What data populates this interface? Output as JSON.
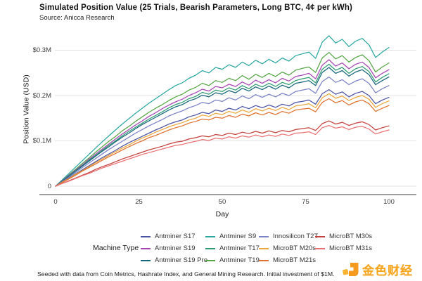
{
  "header": {
    "title": "Simulated Position Value (25 Trials, Bearish Parameters, Long BTC, 4¢ per kWh)",
    "subtitle": "Source: Anicca Research"
  },
  "footer": {
    "note": "Seeded with data from Coin Metrics, Hashrate Index, and General Mining Research. Initial investment of $1M."
  },
  "branding": {
    "name": "金色财经",
    "color": "#F7A41D"
  },
  "legend": {
    "title": "Machine Type",
    "columns": [
      [
        "Antminer S17",
        "Antminer S19",
        "Antminer S19 Pro"
      ],
      [
        "Antminer S9",
        "Antminer T17",
        "Antminer T19"
      ],
      [
        "Innosilicon T2T",
        "MicroBT M20s",
        "MicroBT M21s"
      ],
      [
        "MicroBT M30s",
        "MicroBT M31s"
      ]
    ]
  },
  "chart_data": {
    "type": "line",
    "title": "Simulated Position Value (25 Trials, Bearish Parameters, Long BTC, 4¢ per kWh)",
    "xlabel": "Day",
    "ylabel": "Position Value (USD)",
    "xlim": [
      0,
      100
    ],
    "ylim": [
      0,
      0.34
    ],
    "grid": true,
    "legend_position": "bottom",
    "x_ticks": [
      {
        "v": 0,
        "label": "0"
      },
      {
        "v": 25,
        "label": "25"
      },
      {
        "v": 50,
        "label": "50"
      },
      {
        "v": 75,
        "label": "75"
      },
      {
        "v": 100,
        "label": "100"
      }
    ],
    "y_ticks": [
      {
        "v": 0,
        "label": "0"
      },
      {
        "v": 0.1,
        "label": "$0.1M"
      },
      {
        "v": 0.2,
        "label": "$0.2M"
      },
      {
        "v": 0.3,
        "label": "$0.3M"
      }
    ],
    "units": "millions USD",
    "x": [
      0,
      2,
      4,
      6,
      8,
      10,
      12,
      14,
      16,
      18,
      20,
      22,
      24,
      26,
      28,
      30,
      32,
      34,
      36,
      38,
      40,
      42,
      44,
      46,
      48,
      50,
      52,
      54,
      56,
      58,
      60,
      62,
      64,
      66,
      68,
      70,
      72,
      74,
      76,
      78,
      80,
      82,
      84,
      86,
      88,
      90,
      92,
      94,
      96,
      98,
      100
    ],
    "series": [
      {
        "name": "Antminer S9",
        "color": "#2BA7A0",
        "values": [
          0,
          0.014,
          0.028,
          0.042,
          0.056,
          0.07,
          0.084,
          0.098,
          0.111,
          0.124,
          0.137,
          0.149,
          0.161,
          0.172,
          0.183,
          0.193,
          0.203,
          0.213,
          0.222,
          0.228,
          0.238,
          0.245,
          0.255,
          0.25,
          0.262,
          0.258,
          0.268,
          0.262,
          0.274,
          0.266,
          0.278,
          0.27,
          0.28,
          0.272,
          0.283,
          0.276,
          0.288,
          0.292,
          0.296,
          0.282,
          0.318,
          0.332,
          0.316,
          0.324,
          0.308,
          0.32,
          0.326,
          0.312,
          0.284,
          0.296,
          0.306
        ]
      },
      {
        "name": "Antminer T19",
        "color": "#56A546",
        "values": [
          0,
          0.012,
          0.025,
          0.037,
          0.05,
          0.062,
          0.075,
          0.087,
          0.099,
          0.11,
          0.122,
          0.132,
          0.143,
          0.153,
          0.163,
          0.172,
          0.18,
          0.189,
          0.197,
          0.203,
          0.212,
          0.218,
          0.227,
          0.222,
          0.233,
          0.229,
          0.238,
          0.233,
          0.244,
          0.236,
          0.247,
          0.24,
          0.249,
          0.242,
          0.252,
          0.245,
          0.256,
          0.26,
          0.263,
          0.251,
          0.283,
          0.295,
          0.281,
          0.288,
          0.274,
          0.284,
          0.29,
          0.277,
          0.252,
          0.263,
          0.272
        ]
      },
      {
        "name": "Antminer S19",
        "color": "#A645B2",
        "values": [
          0,
          0.012,
          0.024,
          0.035,
          0.047,
          0.059,
          0.071,
          0.082,
          0.093,
          0.104,
          0.115,
          0.125,
          0.135,
          0.144,
          0.154,
          0.162,
          0.171,
          0.179,
          0.186,
          0.192,
          0.2,
          0.206,
          0.214,
          0.21,
          0.22,
          0.217,
          0.225,
          0.22,
          0.23,
          0.223,
          0.234,
          0.227,
          0.235,
          0.228,
          0.238,
          0.232,
          0.242,
          0.245,
          0.249,
          0.237,
          0.267,
          0.279,
          0.265,
          0.272,
          0.259,
          0.269,
          0.274,
          0.262,
          0.239,
          0.249,
          0.257
        ]
      },
      {
        "name": "Antminer T17",
        "color": "#2E9B72",
        "values": [
          0,
          0.011,
          0.023,
          0.034,
          0.045,
          0.057,
          0.068,
          0.079,
          0.09,
          0.1,
          0.111,
          0.121,
          0.13,
          0.139,
          0.148,
          0.156,
          0.164,
          0.173,
          0.18,
          0.185,
          0.193,
          0.198,
          0.207,
          0.203,
          0.212,
          0.209,
          0.217,
          0.212,
          0.222,
          0.215,
          0.225,
          0.219,
          0.227,
          0.22,
          0.229,
          0.224,
          0.233,
          0.237,
          0.24,
          0.228,
          0.258,
          0.269,
          0.256,
          0.262,
          0.249,
          0.259,
          0.264,
          0.253,
          0.23,
          0.24,
          0.248
        ]
      },
      {
        "name": "Antminer S19 Pro",
        "color": "#17657D",
        "values": [
          0,
          0.011,
          0.022,
          0.033,
          0.044,
          0.055,
          0.066,
          0.077,
          0.087,
          0.098,
          0.108,
          0.117,
          0.127,
          0.136,
          0.144,
          0.152,
          0.16,
          0.168,
          0.175,
          0.18,
          0.188,
          0.193,
          0.201,
          0.197,
          0.206,
          0.203,
          0.211,
          0.206,
          0.216,
          0.21,
          0.219,
          0.213,
          0.221,
          0.214,
          0.223,
          0.217,
          0.227,
          0.23,
          0.233,
          0.222,
          0.251,
          0.262,
          0.249,
          0.255,
          0.243,
          0.252,
          0.257,
          0.246,
          0.224,
          0.233,
          0.241
        ]
      },
      {
        "name": "Innosilicon T2T",
        "color": "#7B82C6",
        "values": [
          0,
          0.01,
          0.02,
          0.03,
          0.041,
          0.051,
          0.061,
          0.071,
          0.081,
          0.09,
          0.099,
          0.108,
          0.117,
          0.125,
          0.133,
          0.14,
          0.147,
          0.155,
          0.161,
          0.166,
          0.173,
          0.178,
          0.185,
          0.182,
          0.19,
          0.187,
          0.195,
          0.19,
          0.199,
          0.193,
          0.202,
          0.196,
          0.203,
          0.197,
          0.205,
          0.2,
          0.209,
          0.212,
          0.215,
          0.205,
          0.231,
          0.241,
          0.229,
          0.235,
          0.224,
          0.232,
          0.237,
          0.227,
          0.206,
          0.215,
          0.222
        ]
      },
      {
        "name": "Antminer S17",
        "color": "#4C53A4",
        "values": [
          0,
          0.009,
          0.018,
          0.027,
          0.036,
          0.045,
          0.054,
          0.063,
          0.071,
          0.079,
          0.088,
          0.096,
          0.103,
          0.11,
          0.117,
          0.124,
          0.13,
          0.137,
          0.142,
          0.146,
          0.153,
          0.157,
          0.163,
          0.16,
          0.168,
          0.165,
          0.172,
          0.168,
          0.176,
          0.171,
          0.178,
          0.173,
          0.179,
          0.174,
          0.181,
          0.177,
          0.185,
          0.187,
          0.19,
          0.181,
          0.204,
          0.213,
          0.203,
          0.208,
          0.197,
          0.205,
          0.209,
          0.2,
          0.182,
          0.19,
          0.196
        ]
      },
      {
        "name": "MicroBT M20s",
        "color": "#EBA63C",
        "values": [
          0,
          0.009,
          0.017,
          0.026,
          0.034,
          0.043,
          0.052,
          0.06,
          0.068,
          0.076,
          0.084,
          0.091,
          0.099,
          0.106,
          0.112,
          0.119,
          0.125,
          0.131,
          0.136,
          0.14,
          0.146,
          0.15,
          0.157,
          0.154,
          0.161,
          0.158,
          0.165,
          0.161,
          0.168,
          0.163,
          0.171,
          0.166,
          0.172,
          0.167,
          0.174,
          0.169,
          0.177,
          0.179,
          0.182,
          0.173,
          0.195,
          0.204,
          0.194,
          0.199,
          0.189,
          0.196,
          0.2,
          0.192,
          0.174,
          0.182,
          0.188
        ]
      },
      {
        "name": "MicroBT M21s",
        "color": "#E0712F",
        "values": [
          0,
          0.008,
          0.016,
          0.024,
          0.033,
          0.041,
          0.049,
          0.057,
          0.065,
          0.072,
          0.08,
          0.087,
          0.094,
          0.1,
          0.107,
          0.112,
          0.118,
          0.124,
          0.129,
          0.133,
          0.139,
          0.143,
          0.148,
          0.146,
          0.152,
          0.15,
          0.156,
          0.152,
          0.159,
          0.155,
          0.162,
          0.157,
          0.163,
          0.158,
          0.165,
          0.161,
          0.168,
          0.17,
          0.172,
          0.164,
          0.185,
          0.193,
          0.184,
          0.189,
          0.179,
          0.186,
          0.19,
          0.182,
          0.165,
          0.172,
          0.178
        ]
      },
      {
        "name": "MicroBT M30s",
        "color": "#C4403C",
        "values": [
          0,
          0.006,
          0.012,
          0.018,
          0.024,
          0.03,
          0.037,
          0.043,
          0.048,
          0.054,
          0.06,
          0.065,
          0.07,
          0.075,
          0.08,
          0.084,
          0.088,
          0.093,
          0.097,
          0.099,
          0.104,
          0.107,
          0.111,
          0.109,
          0.114,
          0.112,
          0.117,
          0.114,
          0.119,
          0.116,
          0.121,
          0.117,
          0.122,
          0.118,
          0.123,
          0.12,
          0.125,
          0.127,
          0.129,
          0.123,
          0.138,
          0.144,
          0.137,
          0.141,
          0.134,
          0.139,
          0.142,
          0.136,
          0.124,
          0.129,
          0.133
        ]
      },
      {
        "name": "MicroBT M31s",
        "color": "#EA7173",
        "values": [
          0,
          0.006,
          0.011,
          0.017,
          0.023,
          0.028,
          0.034,
          0.04,
          0.045,
          0.05,
          0.055,
          0.06,
          0.065,
          0.07,
          0.074,
          0.078,
          0.082,
          0.086,
          0.09,
          0.092,
          0.096,
          0.099,
          0.103,
          0.101,
          0.106,
          0.104,
          0.109,
          0.106,
          0.111,
          0.108,
          0.113,
          0.109,
          0.113,
          0.11,
          0.115,
          0.112,
          0.117,
          0.118,
          0.12,
          0.114,
          0.129,
          0.134,
          0.128,
          0.131,
          0.125,
          0.13,
          0.132,
          0.126,
          0.115,
          0.12,
          0.124
        ]
      }
    ]
  }
}
